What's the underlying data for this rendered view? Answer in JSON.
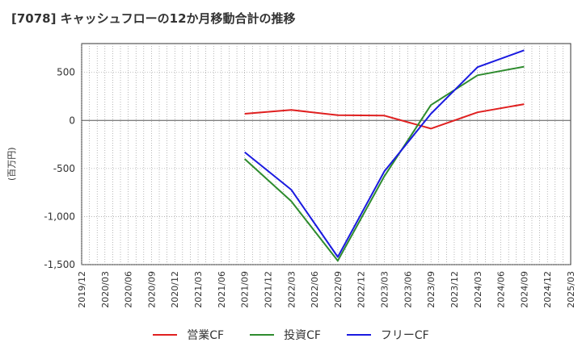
{
  "title": "[7078]  キャッシュフローの12か月移動合計の推移",
  "chart_data": {
    "type": "line",
    "ylabel": "(百万円)",
    "xlabel": "",
    "ylim": [
      -1500,
      800
    ],
    "grid": true,
    "legend_position": "bottom",
    "y_ticks": [
      500,
      0,
      -500,
      -1000,
      -1500
    ],
    "y_tick_labels": [
      "500",
      "0",
      "-500",
      "-1,000",
      "-1,500"
    ],
    "categories": [
      "2019/12",
      "2020/03",
      "2020/06",
      "2020/09",
      "2020/12",
      "2021/03",
      "2021/06",
      "2021/09",
      "2021/12",
      "2022/03",
      "2022/06",
      "2022/09",
      "2022/12",
      "2023/03",
      "2023/06",
      "2023/09",
      "2023/12",
      "2024/03",
      "2024/06",
      "2024/09",
      "2024/12",
      "2025/03"
    ],
    "series": [
      {
        "name": "営業CF",
        "color": "#e02020",
        "values": [
          null,
          null,
          null,
          null,
          null,
          null,
          null,
          70,
          null,
          110,
          null,
          55,
          null,
          50,
          null,
          -85,
          null,
          85,
          null,
          170,
          null,
          null
        ]
      },
      {
        "name": "投資CF",
        "color": "#2e8b2e",
        "values": [
          null,
          null,
          null,
          null,
          null,
          null,
          null,
          -400,
          null,
          -840,
          null,
          -1460,
          null,
          -580,
          null,
          160,
          null,
          470,
          null,
          560,
          null,
          null
        ]
      },
      {
        "name": "フリーCF",
        "color": "#1a1ae0",
        "values": [
          null,
          null,
          null,
          null,
          null,
          null,
          null,
          -330,
          null,
          -720,
          null,
          -1420,
          null,
          -530,
          null,
          70,
          null,
          555,
          null,
          730,
          null,
          null
        ]
      }
    ]
  }
}
